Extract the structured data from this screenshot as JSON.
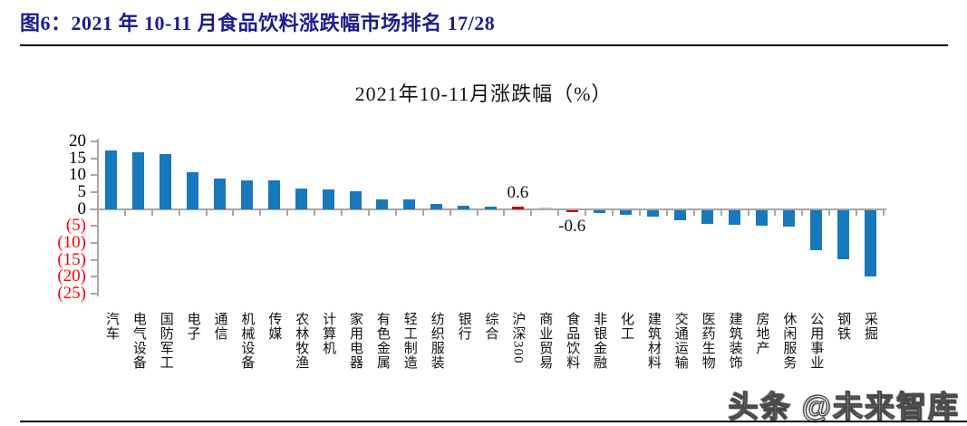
{
  "figure": {
    "caption": "图6：2021 年 10-11 月食品饮料涨跌幅市场排名 17/28",
    "caption_color": "#1b1b8f"
  },
  "chart_data": {
    "type": "bar",
    "title": "2021年10-11月涨跌幅（%）",
    "categories": [
      "汽车",
      "电气设备",
      "国防军工",
      "电子",
      "通信",
      "机械设备",
      "传媒",
      "农林牧渔",
      "计算机",
      "家用电器",
      "有色金属",
      "轻工制造",
      "纺织服装",
      "银行",
      "综合",
      "沪深300",
      "商业贸易",
      "食品饮料",
      "非银金融",
      "化工",
      "建筑材料",
      "交通运输",
      "医药生物",
      "建筑装饰",
      "房地产",
      "休闲服务",
      "公用事业",
      "钢铁",
      "采掘"
    ],
    "values": [
      17.3,
      16.8,
      16.3,
      10.8,
      8.9,
      8.6,
      8.4,
      6.0,
      5.7,
      5.2,
      3.0,
      2.8,
      1.6,
      0.9,
      0.6,
      0.6,
      0.15,
      -0.6,
      -0.7,
      -1.4,
      -1.8,
      -3.0,
      -4.1,
      -4.4,
      -4.6,
      -4.9,
      -11.8,
      -14.6,
      -19.5
    ],
    "data_labels": [
      {
        "category": "沪深300",
        "text": "0.6",
        "position": "above"
      },
      {
        "category": "食品饮料",
        "text": "-0.6",
        "position": "below"
      }
    ],
    "bar_colors": {
      "沪深300": "#c00000",
      "食品饮料": "#c00000",
      "商业贸易": "#9dc3e6"
    },
    "default_bar_color": "#1878bc",
    "ylim": [
      -25,
      20
    ],
    "ytick_step": 5,
    "ytick_labels": [
      "20",
      "15",
      "10",
      "5",
      "0",
      "(5)",
      "(10)",
      "(15)",
      "(20)",
      "(25)"
    ],
    "negative_tick_color": "#ff0000",
    "axis_color": "#a6a6a6",
    "grid": false,
    "legend": "none"
  },
  "watermark": {
    "text": "头条 @未来智库"
  }
}
